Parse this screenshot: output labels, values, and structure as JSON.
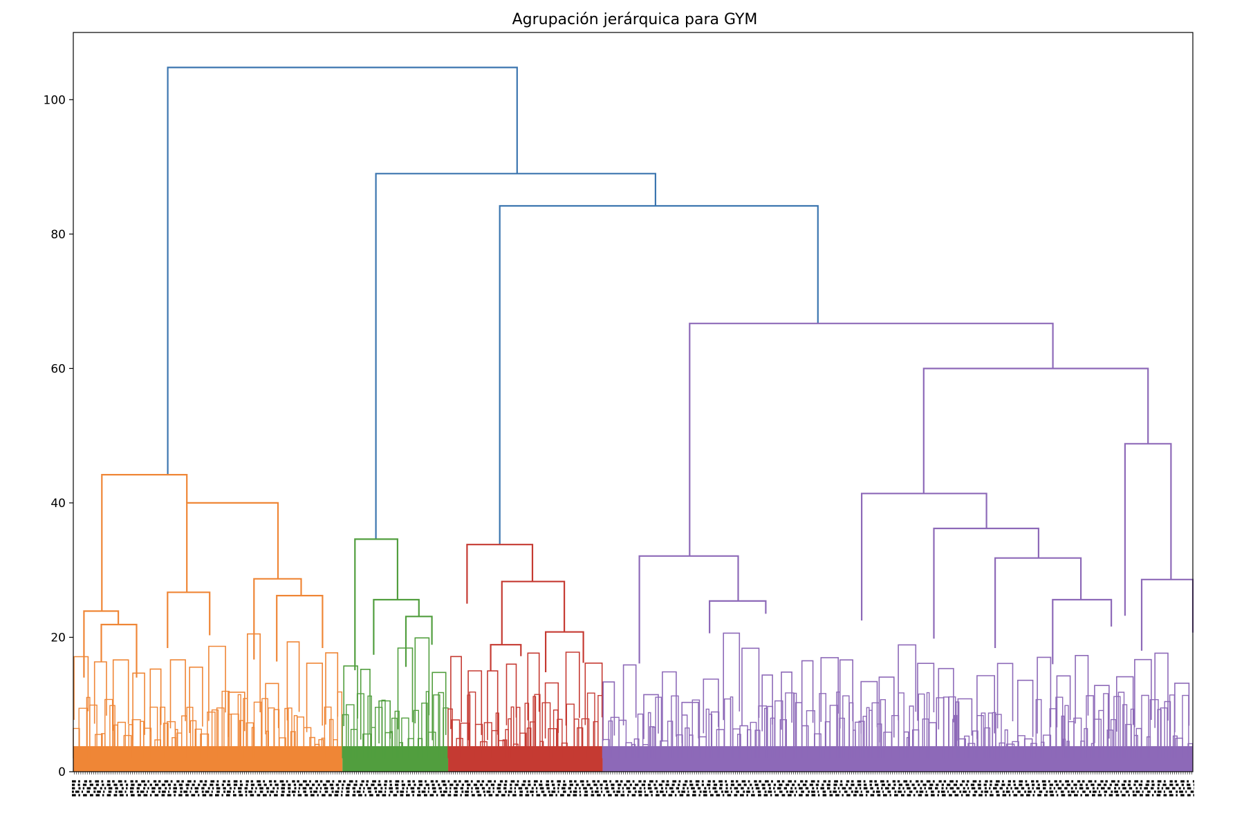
{
  "chart_data": {
    "type": "dendrogram",
    "title": "Agrupación jerárquica para GYM",
    "xlabel": "",
    "ylabel": "",
    "ylim": [
      0,
      110
    ],
    "yticks": [
      0,
      20,
      40,
      60,
      80,
      100
    ],
    "ytick_labels": [
      "0",
      "20",
      "40",
      "60",
      "80",
      "100"
    ],
    "leaf_count": 4000,
    "leaf_labels_note": "leaf labels unreadable (dense overlap)",
    "clusters": [
      {
        "name": "cluster-orange",
        "color": "#ef8636",
        "leaf_span": [
          0.0,
          0.2404
        ],
        "height": 44.2
      },
      {
        "name": "cluster-green",
        "color": "#519e3e",
        "leaf_span": [
          0.2404,
          0.3348
        ],
        "height": 34.6
      },
      {
        "name": "cluster-red",
        "color": "#c53a32",
        "leaf_span": [
          0.3348,
          0.4728
        ],
        "height": 33.8
      },
      {
        "name": "cluster-purple",
        "color": "#8d69b8",
        "leaf_span": [
          0.4728,
          1.0
        ],
        "height": 66.7
      }
    ],
    "links": [
      {
        "color": "#3b75af",
        "left": [
          0.0844,
          44.2
        ],
        "right": [
          0.3964,
          89.0
        ],
        "height": 104.8
      },
      {
        "color": "#3b75af",
        "left": [
          0.2703,
          34.6
        ],
        "right": [
          0.52,
          84.2
        ],
        "height": 89.0
      },
      {
        "color": "#3b75af",
        "left": [
          0.3809,
          33.8
        ],
        "right": [
          0.6651,
          66.7
        ],
        "height": 84.2
      },
      {
        "color": "#ef8636",
        "left": [
          0.0255,
          23.9
        ],
        "right": [
          0.1014,
          40.0
        ],
        "height": 44.2
      },
      {
        "color": "#ef8636",
        "left": [
          0.1014,
          26.7
        ],
        "right": [
          0.1828,
          28.7
        ],
        "height": 40.0
      },
      {
        "color": "#ef8636",
        "left": [
          0.0095,
          14.0
        ],
        "right": [
          0.0402,
          21.9
        ],
        "height": 23.9
      },
      {
        "color": "#ef8636",
        "left": [
          0.025,
          16.4
        ],
        "right": [
          0.0565,
          14.0
        ],
        "height": 21.9
      },
      {
        "color": "#ef8636",
        "left": [
          0.0842,
          18.4
        ],
        "right": [
          0.1218,
          20.3
        ],
        "height": 26.7
      },
      {
        "color": "#ef8636",
        "left": [
          0.1614,
          16.7
        ],
        "right": [
          0.2035,
          26.2
        ],
        "height": 28.7
      },
      {
        "color": "#ef8636",
        "left": [
          0.1817,
          16.4
        ],
        "right": [
          0.2226,
          18.4
        ],
        "height": 26.2
      },
      {
        "color": "#519e3e",
        "left": [
          0.2516,
          15.1
        ],
        "right": [
          0.2896,
          25.6
        ],
        "height": 34.6
      },
      {
        "color": "#519e3e",
        "left": [
          0.2683,
          17.4
        ],
        "right": [
          0.3087,
          23.1
        ],
        "height": 25.6
      },
      {
        "color": "#519e3e",
        "left": [
          0.2971,
          15.6
        ],
        "right": [
          0.3203,
          18.9
        ],
        "height": 23.1
      },
      {
        "color": "#c53a32",
        "left": [
          0.3517,
          25.0
        ],
        "right": [
          0.4101,
          28.3
        ],
        "height": 33.8
      },
      {
        "color": "#c53a32",
        "left": [
          0.3828,
          18.9
        ],
        "right": [
          0.4386,
          20.8
        ],
        "height": 28.3
      },
      {
        "color": "#c53a32",
        "left": [
          0.3728,
          15.0
        ],
        "right": [
          0.3998,
          17.2
        ],
        "height": 18.9
      },
      {
        "color": "#c53a32",
        "left": [
          0.4219,
          14.8
        ],
        "right": [
          0.4556,
          16.2
        ],
        "height": 20.8
      },
      {
        "color": "#8d69b8",
        "left": [
          0.5505,
          32.1
        ],
        "right": [
          0.875,
          60.0
        ],
        "height": 66.7
      },
      {
        "color": "#8d69b8",
        "left": [
          0.7596,
          41.4
        ],
        "right": [
          0.96,
          48.8
        ],
        "height": 60.0
      },
      {
        "color": "#8d69b8",
        "left": [
          0.5056,
          16.1
        ],
        "right": [
          0.5939,
          25.4
        ],
        "height": 32.1
      },
      {
        "color": "#8d69b8",
        "left": [
          0.5683,
          20.6
        ],
        "right": [
          0.6185,
          23.5
        ],
        "height": 25.4
      },
      {
        "color": "#8d69b8",
        "left": [
          0.7042,
          22.5
        ],
        "right": [
          0.8157,
          36.2
        ],
        "height": 41.4
      },
      {
        "color": "#8d69b8",
        "left": [
          0.7687,
          19.8
        ],
        "right": [
          0.8622,
          31.8
        ],
        "height": 36.2
      },
      {
        "color": "#8d69b8",
        "left": [
          0.8234,
          18.4
        ],
        "right": [
          0.9,
          25.6
        ],
        "height": 31.8
      },
      {
        "color": "#8d69b8",
        "left": [
          0.8748,
          16.0
        ],
        "right": [
          0.9272,
          21.6
        ],
        "height": 25.6
      },
      {
        "color": "#8d69b8",
        "left": [
          0.9394,
          23.2
        ],
        "right": [
          0.9805,
          28.6
        ],
        "height": 48.8
      },
      {
        "color": "#8d69b8",
        "left": [
          0.9543,
          18.0
        ],
        "right": [
          1.0,
          20.7
        ],
        "height": 28.6
      }
    ]
  }
}
